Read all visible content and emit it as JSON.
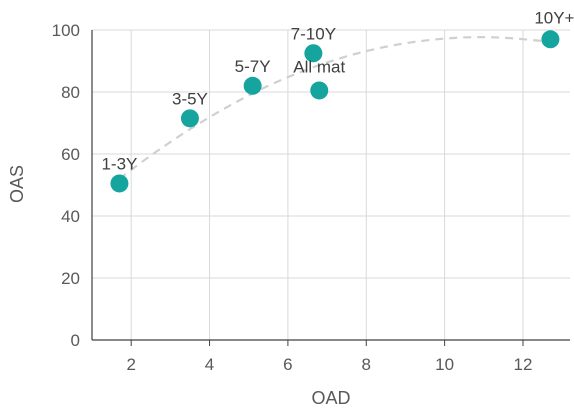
{
  "chart_data": {
    "type": "scatter",
    "title": "",
    "xlabel": "OAD",
    "ylabel": "OAS",
    "xlim": [
      1,
      13.2
    ],
    "ylim": [
      0,
      100
    ],
    "xticks": [
      2,
      4,
      6,
      8,
      10,
      12
    ],
    "yticks": [
      0,
      20,
      40,
      60,
      80,
      100
    ],
    "grid": "vertical and horizontal",
    "legend": "none",
    "colors": {
      "point": "#15A49E",
      "trend": "#D0D0D0",
      "grid": "#D9D9D9",
      "axis": "#404040",
      "text": "#595959"
    },
    "points": [
      {
        "label": "1-3Y",
        "x": 1.7,
        "y": 50.5
      },
      {
        "label": "3-5Y",
        "x": 3.5,
        "y": 71.5
      },
      {
        "label": "5-7Y",
        "x": 5.1,
        "y": 82
      },
      {
        "label": "7-10Y",
        "x": 6.65,
        "y": 92.5
      },
      {
        "label": "All mat",
        "x": 6.8,
        "y": 80.5
      },
      {
        "label": "10Y+",
        "x": 12.7,
        "y": 97
      }
    ],
    "trendline": {
      "type": "polynomial",
      "style": "dashed",
      "points": [
        [
          1.7,
          52
        ],
        [
          2.5,
          59.5
        ],
        [
          3.5,
          68
        ],
        [
          4.5,
          75.5
        ],
        [
          5.5,
          82
        ],
        [
          6.5,
          87.3
        ],
        [
          7.5,
          91.5
        ],
        [
          8.5,
          94.6
        ],
        [
          9.5,
          96.6
        ],
        [
          10.5,
          97.6
        ],
        [
          11.5,
          97.5
        ],
        [
          12.7,
          96.2
        ]
      ]
    }
  }
}
